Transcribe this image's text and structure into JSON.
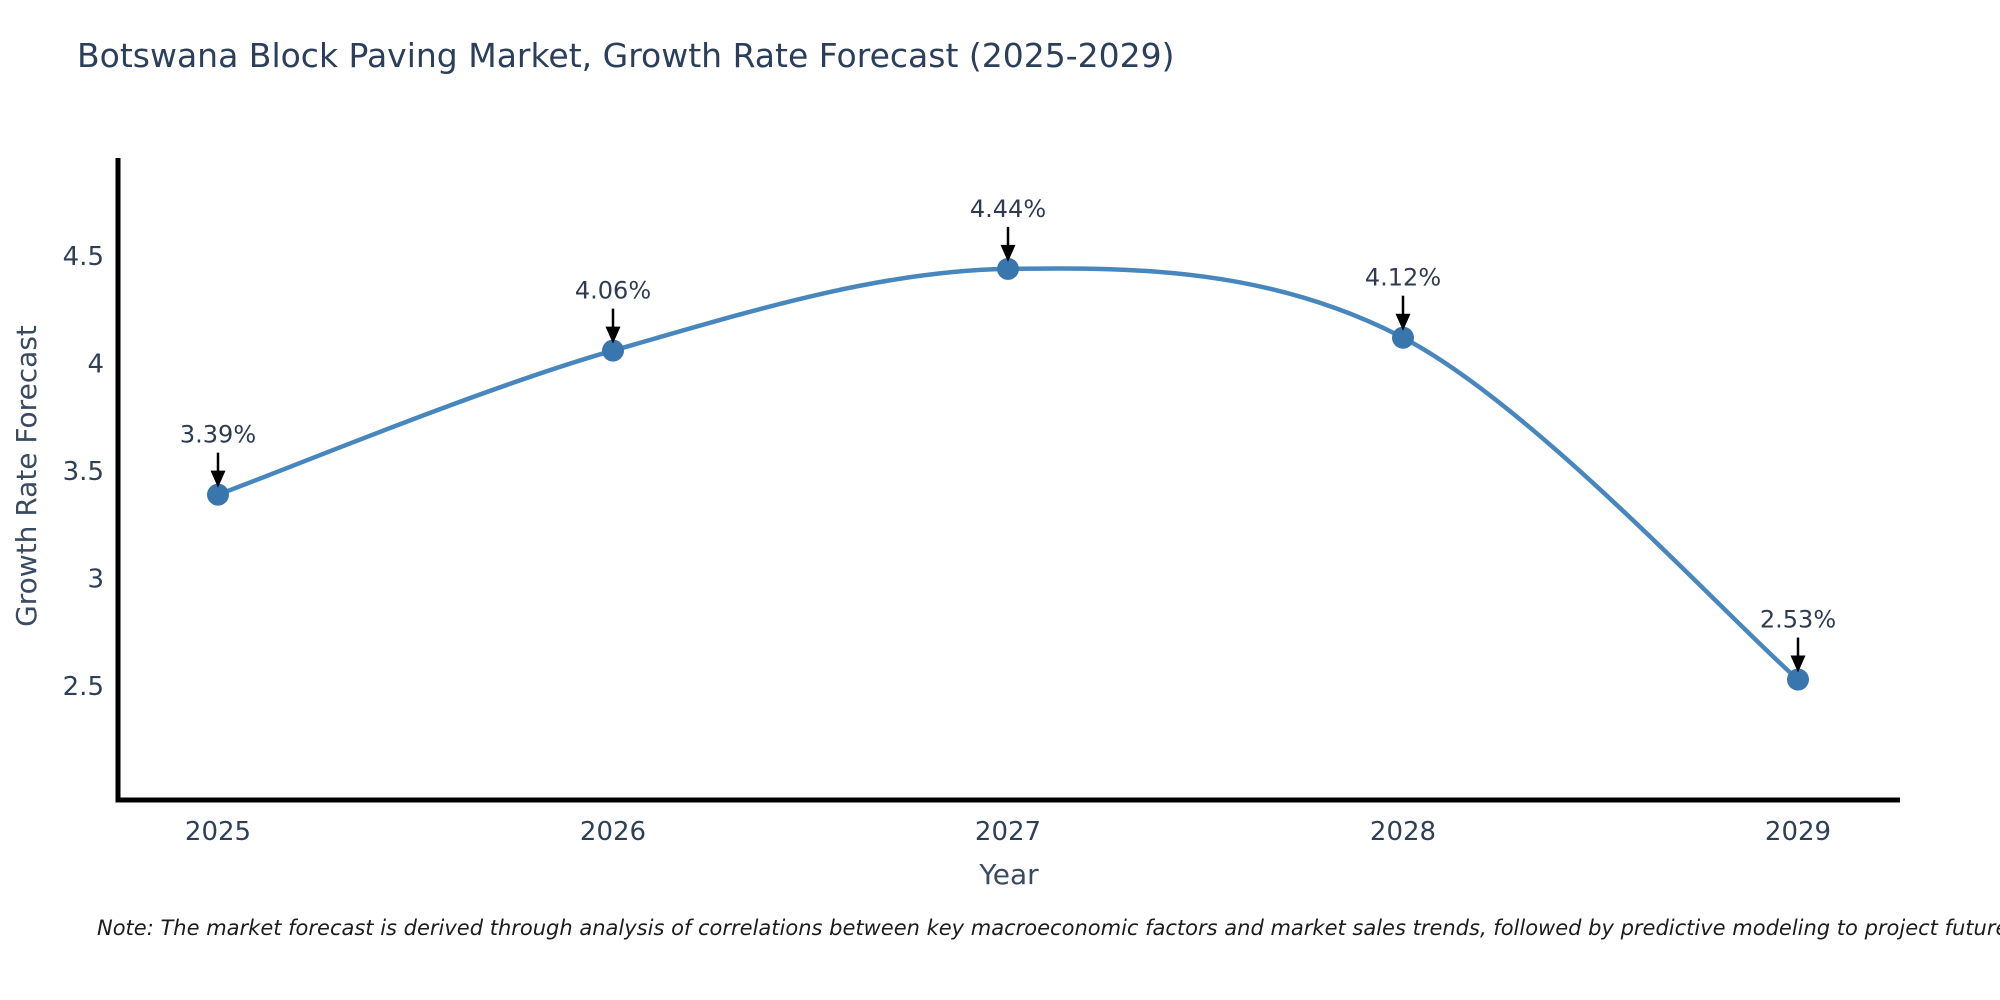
{
  "figure": {
    "note": "Note: The market forecast is derived through analysis of correlations between key macroeconomic factors and market sales trends, followed by predictive modeling to project future sales"
  },
  "chart_data": {
    "type": "line",
    "title": "Botswana Block Paving Market, Growth Rate Forecast (2025-2029)",
    "x": [
      "2025",
      "2026",
      "2027",
      "2028",
      "2029"
    ],
    "series": [
      {
        "name": "Growth Rate Forecast",
        "values": [
          3.39,
          4.06,
          4.44,
          4.12,
          2.53
        ]
      }
    ],
    "point_labels": [
      "3.39%",
      "4.06%",
      "4.44%",
      "4.12%",
      "2.53%"
    ],
    "xlabel": "Year",
    "ylabel": "Growth Rate Forecast",
    "yticks": [
      2.5,
      3,
      3.5,
      4,
      4.5
    ],
    "ylim": [
      1.9,
      5.0
    ],
    "line_shape": "spline",
    "grid": false,
    "legend": "none",
    "colors": {
      "line": "#4787bd",
      "marker": "#3a76ae",
      "axis": "#000000",
      "tick_label": "#2e4057",
      "annotation_text": "#2f3b52",
      "annotation_arrow": "#000000",
      "title_text": "#2b3f5c"
    }
  }
}
